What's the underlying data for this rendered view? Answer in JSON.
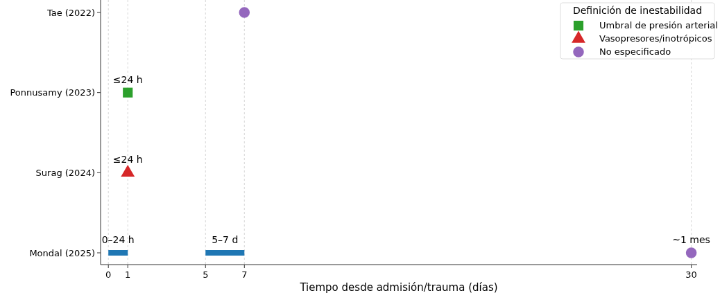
{
  "chart_data": {
    "type": "scatter",
    "orientation": "horizontal",
    "xlabel": "Tiempo desde admisión/trauma (días)",
    "legend_title": "Definición de inestabilidad",
    "legend": "top right",
    "grid": "x",
    "categories": [
      "Tae (2022)",
      "Ponnusamy (2023)",
      "Surag (2024)",
      "Mondal (2025)"
    ],
    "xlim": [
      -0.4,
      30.3
    ],
    "xticks": [
      0,
      1,
      5,
      7,
      30
    ],
    "series": [
      {
        "name": "Umbral de presión arterial",
        "marker": "square",
        "color": "#2ca02c",
        "values": [
          null,
          1,
          null,
          null
        ]
      },
      {
        "name": "Vasopresores/inotrópicos",
        "marker": "triangle",
        "color": "#d62728",
        "values": [
          null,
          null,
          1,
          null
        ]
      },
      {
        "name": "No especificado",
        "marker": "circle",
        "color": "#9467bd",
        "values": [
          7,
          null,
          null,
          30
        ]
      },
      {
        "type": "bar",
        "color": "#1f77b4",
        "values": [
          null,
          null,
          null,
          1
        ],
        "base": [
          null,
          null,
          null,
          0
        ]
      },
      {
        "type": "bar",
        "color": "#1f77b4",
        "values": [
          null,
          null,
          null,
          2
        ],
        "base": [
          null,
          null,
          null,
          5
        ]
      }
    ],
    "annotations": [
      {
        "text": "≤24 h",
        "x": 1,
        "y": "Ponnusamy (2023)"
      },
      {
        "text": "≤24 h",
        "x": 1,
        "y": "Surag (2024)"
      },
      {
        "text": "0–24 h",
        "x": 0.5,
        "y": "Mondal (2025)"
      },
      {
        "text": "5–7 d",
        "x": 6,
        "y": "Mondal (2025)"
      },
      {
        "text": "~1 mes",
        "x": 30,
        "y": "Mondal (2025)"
      }
    ]
  }
}
